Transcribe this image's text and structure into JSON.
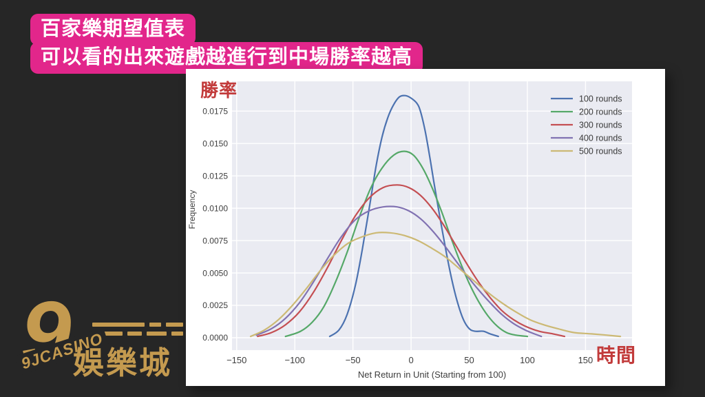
{
  "page": {
    "background": "#262626"
  },
  "header": {
    "line1": "百家樂期望值表",
    "line2": "可以看的出來遊戲越進行到中場勝率越高",
    "badge_color": "#e2268b",
    "text_color": "#ffffff"
  },
  "annotations": {
    "y_label_cn": "勝率",
    "x_label_cn": "時間",
    "color": "#c23b3b"
  },
  "logo": {
    "glyph": "9",
    "brand": "9JCASINO",
    "subtitle": "娛樂城",
    "gold": "#c49a4f"
  },
  "chart_data": {
    "type": "line",
    "title": "",
    "xlabel": "Net Return in Unit (Starting from 100)",
    "ylabel": "Frequency",
    "xlim": [
      -154,
      190
    ],
    "ylim": [
      0,
      0.0198
    ],
    "x_ticks": [
      -150,
      -100,
      -50,
      0,
      50,
      100,
      150
    ],
    "y_ticks": [
      0.0,
      0.0025,
      0.005,
      0.0075,
      0.01,
      0.0125,
      0.015,
      0.0175
    ],
    "grid": true,
    "plot_bg": "#eaebf2",
    "grid_color": "#ffffff",
    "tick_color": "#3d3d3d",
    "legend_position": "upper right",
    "series": [
      {
        "name": "100 rounds",
        "color": "#4C72B0",
        "points": [
          [
            -70,
            0.0001
          ],
          [
            -62,
            0.0006
          ],
          [
            -55,
            0.0018
          ],
          [
            -48,
            0.004
          ],
          [
            -42,
            0.0068
          ],
          [
            -36,
            0.01
          ],
          [
            -30,
            0.0133
          ],
          [
            -25,
            0.0155
          ],
          [
            -20,
            0.017
          ],
          [
            -15,
            0.018
          ],
          [
            -10,
            0.0186
          ],
          [
            -5,
            0.0187
          ],
          [
            0,
            0.0185
          ],
          [
            5,
            0.0181
          ],
          [
            8,
            0.0175
          ],
          [
            12,
            0.016
          ],
          [
            16,
            0.014
          ],
          [
            20,
            0.0118
          ],
          [
            25,
            0.0092
          ],
          [
            30,
            0.0067
          ],
          [
            35,
            0.0045
          ],
          [
            40,
            0.0027
          ],
          [
            45,
            0.0014
          ],
          [
            50,
            0.0007
          ],
          [
            55,
            0.0005
          ],
          [
            62,
            0.0005
          ],
          [
            68,
            0.0003
          ],
          [
            75,
            0.0001
          ]
        ]
      },
      {
        "name": "200 rounds",
        "color": "#55A868",
        "points": [
          [
            -108,
            0.0001
          ],
          [
            -95,
            0.0005
          ],
          [
            -85,
            0.0012
          ],
          [
            -75,
            0.0024
          ],
          [
            -65,
            0.0043
          ],
          [
            -55,
            0.0066
          ],
          [
            -45,
            0.0092
          ],
          [
            -35,
            0.0115
          ],
          [
            -25,
            0.0131
          ],
          [
            -15,
            0.0141
          ],
          [
            -6,
            0.0144
          ],
          [
            2,
            0.0141
          ],
          [
            10,
            0.0131
          ],
          [
            18,
            0.0116
          ],
          [
            26,
            0.0098
          ],
          [
            34,
            0.0078
          ],
          [
            42,
            0.0059
          ],
          [
            50,
            0.0042
          ],
          [
            58,
            0.0028
          ],
          [
            66,
            0.0017
          ],
          [
            74,
            0.0009
          ],
          [
            82,
            0.0004
          ],
          [
            90,
            0.0002
          ],
          [
            100,
            0.0001
          ]
        ]
      },
      {
        "name": "300 rounds",
        "color": "#C44E52",
        "points": [
          [
            -132,
            0.0001
          ],
          [
            -120,
            0.0004
          ],
          [
            -108,
            0.001
          ],
          [
            -96,
            0.002
          ],
          [
            -84,
            0.0035
          ],
          [
            -72,
            0.0054
          ],
          [
            -60,
            0.0075
          ],
          [
            -48,
            0.0094
          ],
          [
            -36,
            0.0108
          ],
          [
            -24,
            0.0116
          ],
          [
            -12,
            0.0118
          ],
          [
            -2,
            0.0116
          ],
          [
            8,
            0.011
          ],
          [
            18,
            0.01
          ],
          [
            28,
            0.0087
          ],
          [
            38,
            0.0072
          ],
          [
            48,
            0.0057
          ],
          [
            58,
            0.0043
          ],
          [
            68,
            0.0031
          ],
          [
            78,
            0.0021
          ],
          [
            88,
            0.0014
          ],
          [
            98,
            0.0009
          ],
          [
            110,
            0.0005
          ],
          [
            122,
            0.0003
          ],
          [
            132,
            0.0001
          ]
        ]
      },
      {
        "name": "400 rounds",
        "color": "#8172B2",
        "points": [
          [
            -133,
            0.0002
          ],
          [
            -120,
            0.0007
          ],
          [
            -108,
            0.0015
          ],
          [
            -96,
            0.0027
          ],
          [
            -84,
            0.0043
          ],
          [
            -72,
            0.0061
          ],
          [
            -60,
            0.0078
          ],
          [
            -48,
            0.0091
          ],
          [
            -36,
            0.0098
          ],
          [
            -24,
            0.0101
          ],
          [
            -12,
            0.0101
          ],
          [
            -2,
            0.0098
          ],
          [
            8,
            0.0092
          ],
          [
            18,
            0.0083
          ],
          [
            28,
            0.0072
          ],
          [
            38,
            0.006
          ],
          [
            48,
            0.0048
          ],
          [
            58,
            0.0037
          ],
          [
            68,
            0.0027
          ],
          [
            78,
            0.0018
          ],
          [
            88,
            0.0011
          ],
          [
            98,
            0.0006
          ],
          [
            106,
            0.0003
          ],
          [
            112,
            0.0001
          ]
        ]
      },
      {
        "name": "500 rounds",
        "color": "#CCB974",
        "points": [
          [
            -138,
            0.0001
          ],
          [
            -126,
            0.0006
          ],
          [
            -114,
            0.0014
          ],
          [
            -102,
            0.0025
          ],
          [
            -90,
            0.0038
          ],
          [
            -78,
            0.0052
          ],
          [
            -66,
            0.0064
          ],
          [
            -54,
            0.0073
          ],
          [
            -42,
            0.0078
          ],
          [
            -30,
            0.0081
          ],
          [
            -18,
            0.0081
          ],
          [
            -6,
            0.0079
          ],
          [
            6,
            0.0075
          ],
          [
            18,
            0.0069
          ],
          [
            30,
            0.0062
          ],
          [
            42,
            0.0053
          ],
          [
            54,
            0.0044
          ],
          [
            66,
            0.0035
          ],
          [
            78,
            0.0027
          ],
          [
            90,
            0.002
          ],
          [
            102,
            0.0014
          ],
          [
            114,
            0.001
          ],
          [
            126,
            0.0007
          ],
          [
            140,
            0.0004
          ],
          [
            155,
            0.0003
          ],
          [
            168,
            0.0002
          ],
          [
            180,
            0.0001
          ]
        ]
      }
    ]
  }
}
